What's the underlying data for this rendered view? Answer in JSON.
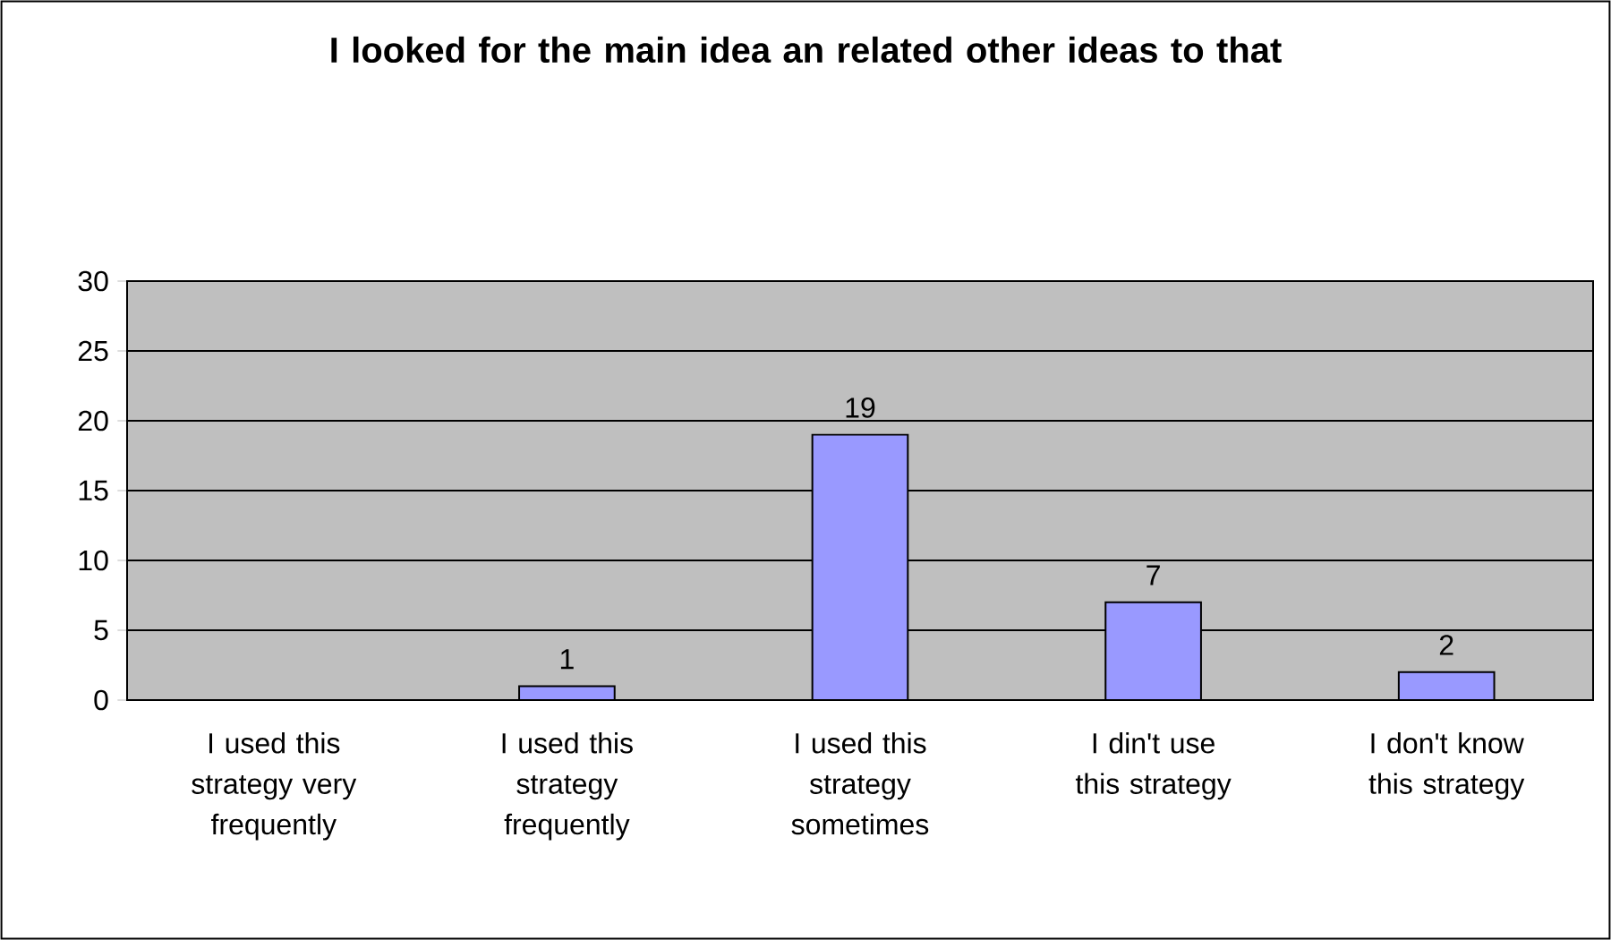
{
  "chart_data": {
    "type": "bar",
    "title": "I looked for the main idea an related other ideas to that",
    "categories": [
      "I used this strategy very frequently",
      "I used this strategy frequently",
      "I used this strategy sometimes",
      "I din't use this strategy",
      "I don't know this strategy"
    ],
    "values": [
      0,
      1,
      19,
      7,
      2
    ],
    "value_labels": [
      null,
      "1",
      "19",
      "7",
      "2"
    ],
    "color": "#9999ff",
    "ylim": [
      0,
      30
    ],
    "yticks": [
      0,
      5,
      10,
      15,
      20,
      25,
      30
    ],
    "grid": "y"
  }
}
